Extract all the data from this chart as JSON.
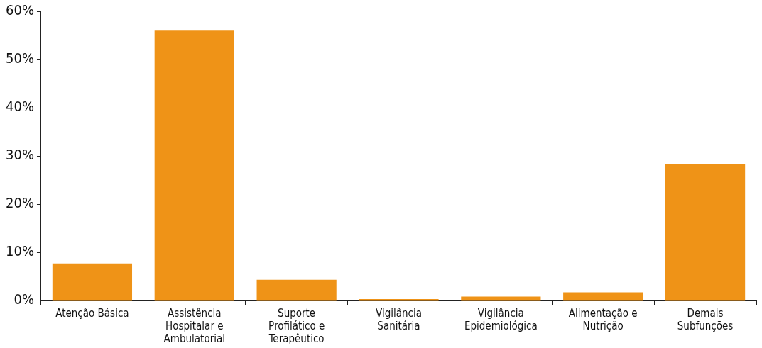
{
  "chart_data": {
    "type": "bar",
    "categories": [
      "Atenção Básica",
      "Assistência Hospitalar e Ambulatorial",
      "Suporte Profilático e Terapêutico",
      "Vigilância Sanitária",
      "Vigilância Epidemiológica",
      "Alimentação e Nutrição",
      "Demais Subfunções"
    ],
    "values": [
      7.7,
      56.0,
      4.3,
      0.3,
      0.8,
      1.7,
      28.3
    ],
    "color": "#ef9317",
    "ylim": [
      0,
      60
    ],
    "yticks": [
      {
        "value": 0,
        "label": "0%"
      },
      {
        "value": 10,
        "label": "10%"
      },
      {
        "value": 20,
        "label": "20%"
      },
      {
        "value": 30,
        "label": "30%"
      },
      {
        "value": 40,
        "label": "40%"
      },
      {
        "value": 50,
        "label": "50%"
      },
      {
        "value": 60,
        "label": "60%"
      }
    ],
    "grid": false,
    "legend": false
  }
}
